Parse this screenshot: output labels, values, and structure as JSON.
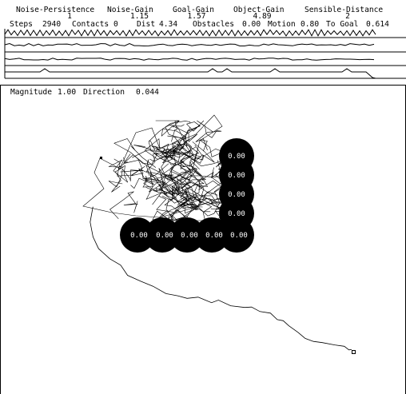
{
  "params": [
    {
      "name": "Noise-Persistence",
      "value": "1"
    },
    {
      "name": "Noise-Gain",
      "value": "1.15"
    },
    {
      "name": "Goal-Gain",
      "value": "1.57"
    },
    {
      "name": "Object-Gain",
      "value": "4.89"
    },
    {
      "name": "Sensible-Distance",
      "value": "2"
    }
  ],
  "status": {
    "steps_label": "Steps",
    "steps": "2940",
    "contacts_label": "Contacts",
    "contacts": "0",
    "dist_label": "Dist",
    "dist": "4.34",
    "obstacles_label": "Obstacles",
    "obstacles": "0.00",
    "motion_label": "Motion",
    "motion": "0.80",
    "togoal_label": "To Goal",
    "togoal": "0.614"
  },
  "vector": {
    "magnitude_label": "Magnitude",
    "magnitude": "1.00",
    "direction_label": "Direction",
    "direction": "0.044"
  },
  "obstacles": [
    {
      "value": "0.00"
    },
    {
      "value": "0.00"
    },
    {
      "value": "0.00"
    },
    {
      "value": "0.00"
    },
    {
      "value": "0.00"
    },
    {
      "value": "0.00"
    },
    {
      "value": "0.00"
    },
    {
      "value": "0.00"
    },
    {
      "value": "0.00"
    }
  ],
  "colors": {
    "ink": "#000000",
    "paper": "#ffffff"
  }
}
